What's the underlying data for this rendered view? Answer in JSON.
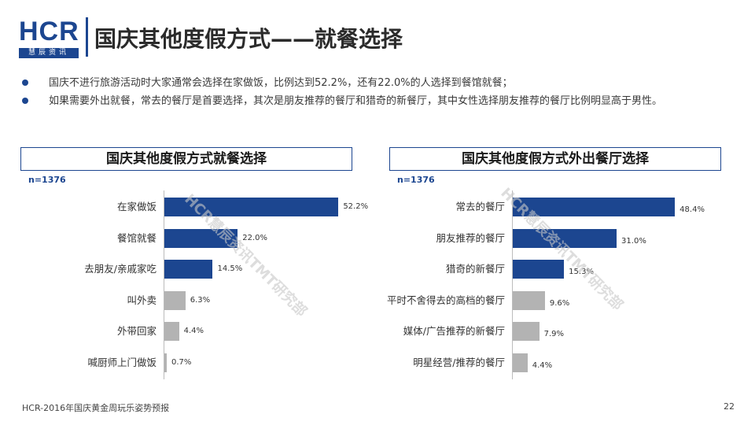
{
  "logo": {
    "text": "HCR",
    "subtitle": "慧辰资讯"
  },
  "title": "国庆其他度假方式——就餐选择",
  "bullets": [
    "国庆不进行旅游活动时大家通常会选择在家做饭，比例达到52.2%，还有22.0%的人选择到餐馆就餐；",
    "如果需要外出就餐，常去的餐厅是首要选择，其次是朋友推荐的餐厅和猎奇的新餐厅，其中女性选择朋友推荐的餐厅比例明显高于男性。"
  ],
  "watermark": "HCR慧辰资讯TMT研究部",
  "footer": "HCR-2016年国庆黄金周玩乐姿势预报",
  "page_number": "22",
  "colors": {
    "primary": "#1c4690",
    "secondary": "#b3b3b3"
  },
  "chart_data": [
    {
      "type": "bar",
      "orientation": "horizontal",
      "title": "国庆其他度假方式就餐选择",
      "sample": "n=1376",
      "categories": [
        "在家做饭",
        "餐馆就餐",
        "去朋友/亲戚家吃",
        "叫外卖",
        "外带回家",
        "喊厨师上门做饭"
      ],
      "values": [
        52.2,
        22.0,
        14.5,
        6.3,
        4.4,
        0.7
      ],
      "value_labels": [
        "52.2%",
        "22.0%",
        "14.5%",
        "6.3%",
        "4.4%",
        "0.7%"
      ],
      "highlight_top": 3
    },
    {
      "type": "bar",
      "orientation": "horizontal",
      "title": "国庆其他度假方式外出餐厅选择",
      "sample": "n=1376",
      "categories": [
        "常去的餐厅",
        "朋友推荐的餐厅",
        "猎奇的新餐厅",
        "平时不舍得去的高档的餐厅",
        "媒体/广告推荐的新餐厅",
        "明星经营/推荐的餐厅"
      ],
      "values": [
        48.4,
        31.0,
        15.3,
        9.6,
        7.9,
        4.4
      ],
      "value_labels": [
        "48.4%",
        "31.0%",
        "15.3%",
        "9.6%",
        "7.9%",
        "4.4%"
      ],
      "highlight_top": 3
    }
  ]
}
